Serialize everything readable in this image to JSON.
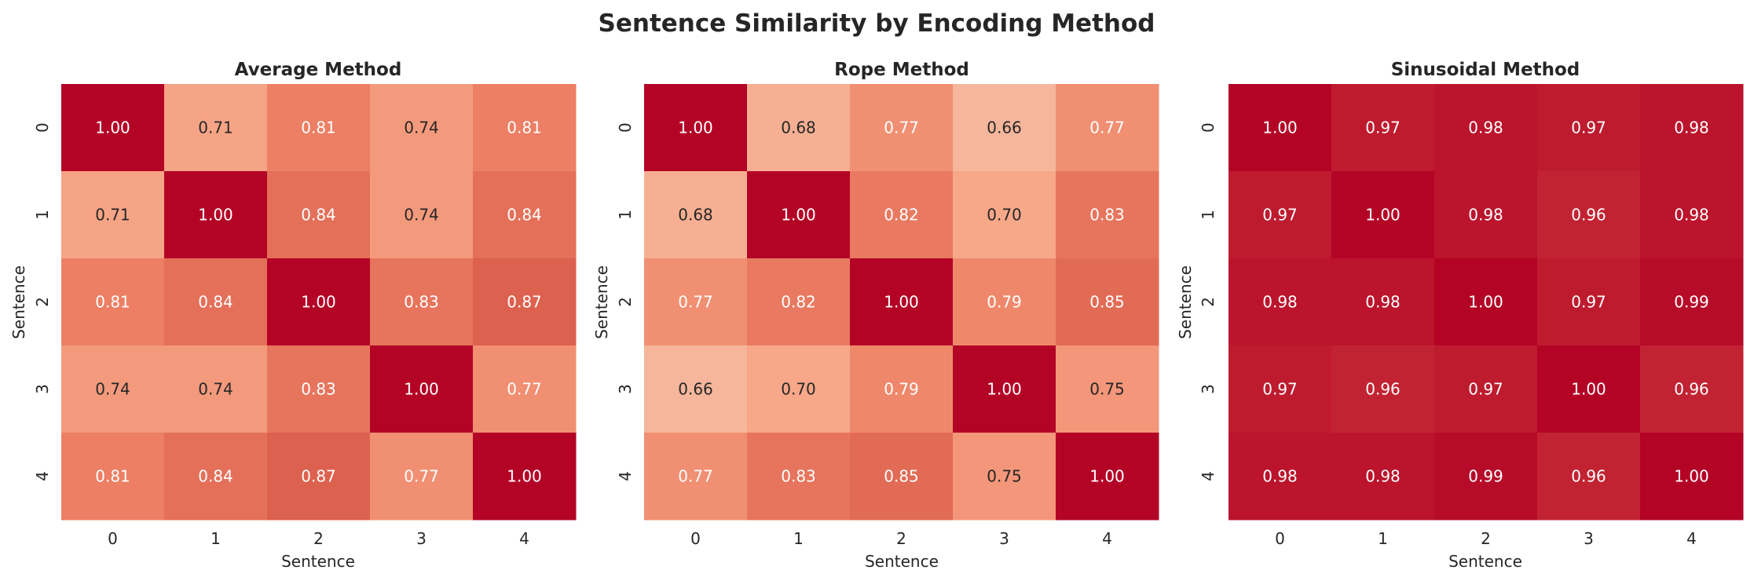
{
  "chart_data": {
    "title": "Sentence Similarity by Encoding Method",
    "type": "heatmap",
    "colormap": "coolwarm",
    "vmin": 0,
    "vmax": 1,
    "colorbar": false,
    "panels": [
      {
        "title": "Average Method",
        "xlabel": "Sentence",
        "ylabel": "Sentence",
        "x_ticks": [
          "0",
          "1",
          "2",
          "3",
          "4"
        ],
        "y_ticks": [
          "0",
          "1",
          "2",
          "3",
          "4"
        ],
        "values": [
          [
            1.0,
            0.71,
            0.81,
            0.74,
            0.81
          ],
          [
            0.71,
            1.0,
            0.84,
            0.74,
            0.84
          ],
          [
            0.81,
            0.84,
            1.0,
            0.83,
            0.87
          ],
          [
            0.74,
            0.74,
            0.83,
            1.0,
            0.77
          ],
          [
            0.81,
            0.84,
            0.87,
            0.77,
            1.0
          ]
        ]
      },
      {
        "title": "Rope Method",
        "xlabel": "Sentence",
        "ylabel": "Sentence",
        "x_ticks": [
          "0",
          "1",
          "2",
          "3",
          "4"
        ],
        "y_ticks": [
          "0",
          "1",
          "2",
          "3",
          "4"
        ],
        "values": [
          [
            1.0,
            0.68,
            0.77,
            0.66,
            0.77
          ],
          [
            0.68,
            1.0,
            0.82,
            0.7,
            0.83
          ],
          [
            0.77,
            0.82,
            1.0,
            0.79,
            0.85
          ],
          [
            0.66,
            0.7,
            0.79,
            1.0,
            0.75
          ],
          [
            0.77,
            0.83,
            0.85,
            0.75,
            1.0
          ]
        ]
      },
      {
        "title": "Sinusoidal Method",
        "xlabel": "Sentence",
        "ylabel": "Sentence",
        "x_ticks": [
          "0",
          "1",
          "2",
          "3",
          "4"
        ],
        "y_ticks": [
          "0",
          "1",
          "2",
          "3",
          "4"
        ],
        "values": [
          [
            1.0,
            0.97,
            0.98,
            0.97,
            0.98
          ],
          [
            0.97,
            1.0,
            0.98,
            0.96,
            0.98
          ],
          [
            0.98,
            0.98,
            1.0,
            0.97,
            0.99
          ],
          [
            0.97,
            0.96,
            0.97,
            1.0,
            0.96
          ],
          [
            0.98,
            0.98,
            0.99,
            0.96,
            1.0
          ]
        ]
      }
    ]
  }
}
